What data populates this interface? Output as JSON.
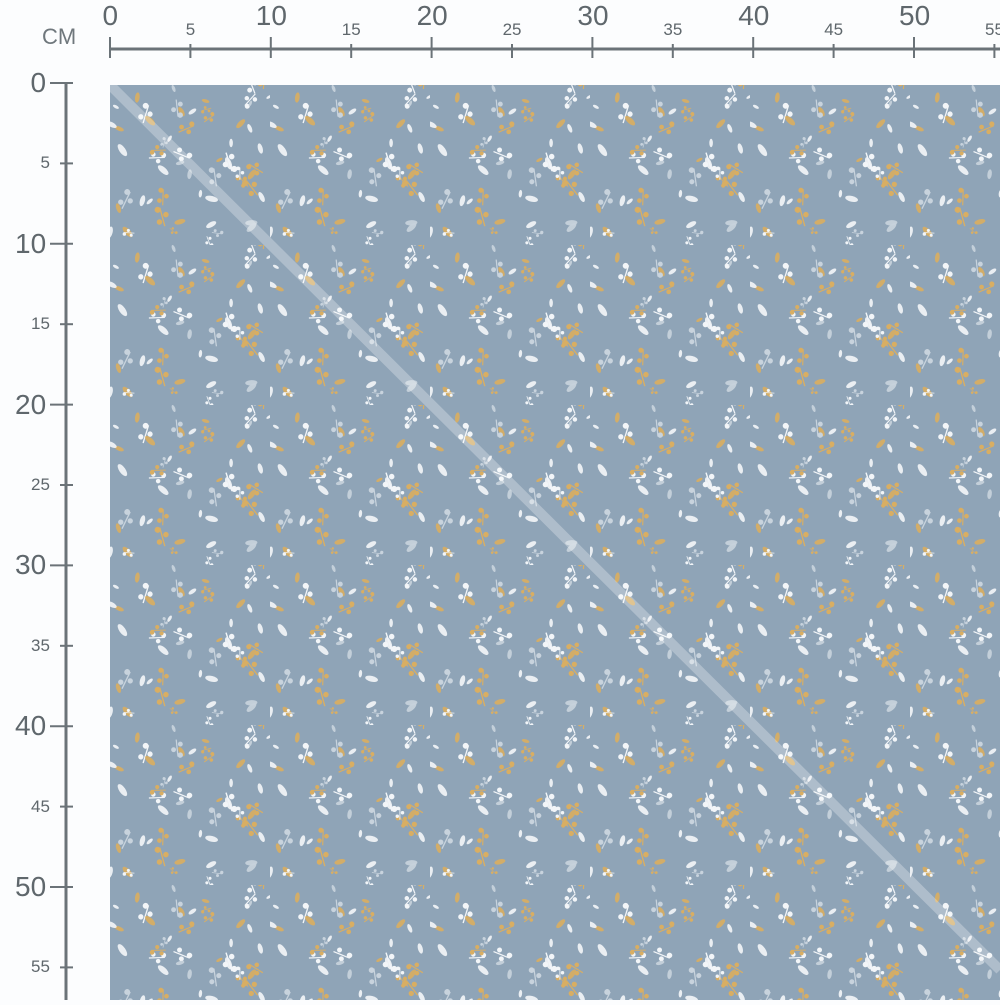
{
  "ruler": {
    "unit": "CM",
    "horizontal_labels": [
      "0",
      "5",
      "10",
      "15",
      "20",
      "25",
      "30",
      "35",
      "40",
      "45",
      "50",
      "55"
    ],
    "vertical_labels": [
      "0",
      "5",
      "10",
      "15",
      "20",
      "25",
      "30",
      "35",
      "40",
      "45",
      "50",
      "55"
    ],
    "color": "#6b7378"
  },
  "swatch": {
    "background_color": "#8fa4b7",
    "motif_colors": [
      "#f2f5f8",
      "#d9ae62",
      "#c8d3dd"
    ],
    "pattern": "scattered white and mustard botanical sprigs with a faint diagonal fold line"
  }
}
